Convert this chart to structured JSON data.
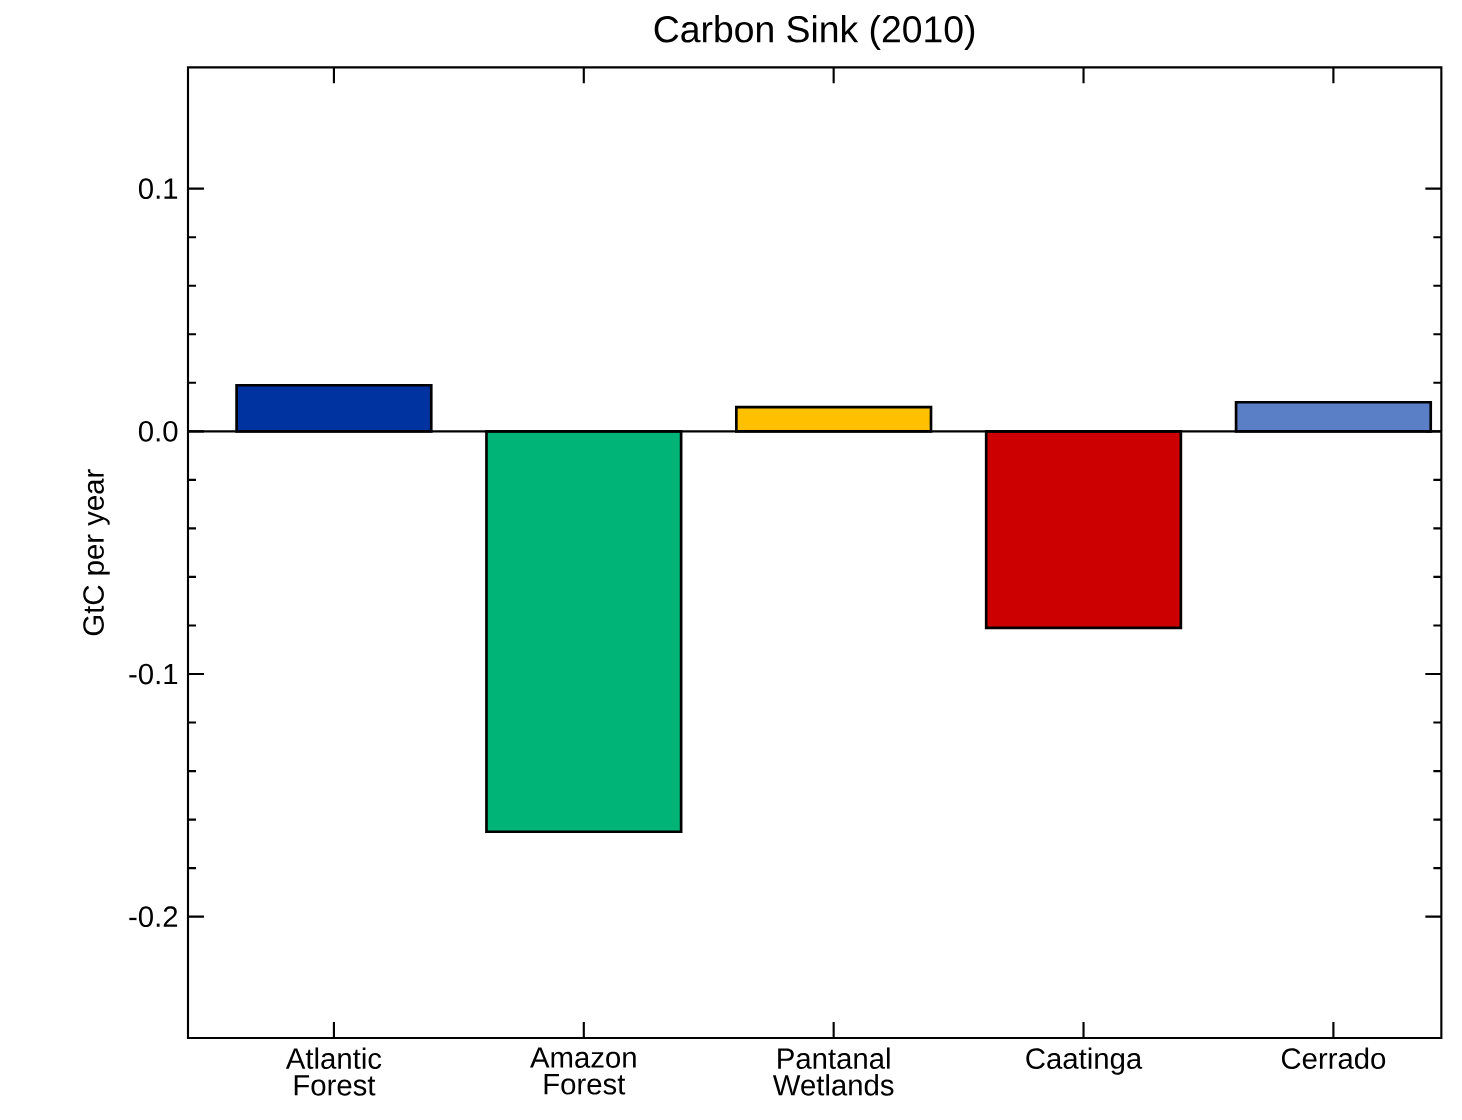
{
  "chart_data": {
    "type": "bar",
    "title": "Carbon Sink (2010)",
    "ylabel": "GtC per year",
    "categories": [
      "Atlantic Forest",
      "Amazon Forest",
      "Pantanal Wetlands",
      "Caatinga",
      "Cerrado"
    ],
    "values": [
      0.019,
      -0.165,
      0.01,
      -0.081,
      0.012
    ],
    "colors": [
      "#0033a0",
      "#00b377",
      "#ffc000",
      "#cc0000",
      "#5a7fc6"
    ],
    "ylim": [
      -0.25,
      0.15
    ],
    "yticks": [
      -0.2,
      -0.1,
      {
        "value": 0,
        "label": "0.0"
      },
      0.1
    ]
  }
}
